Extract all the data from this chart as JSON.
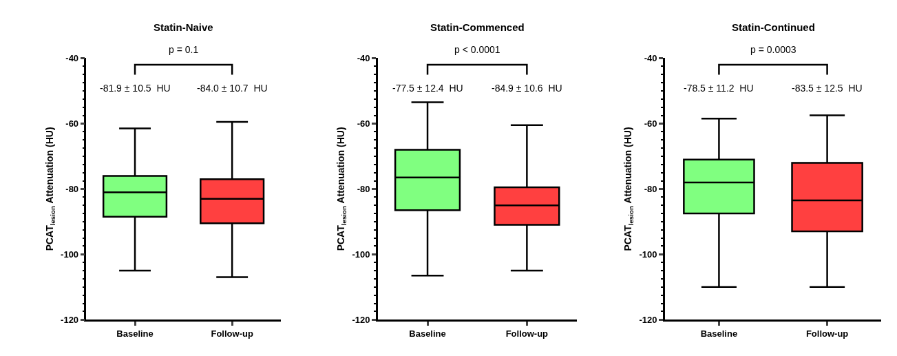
{
  "chart_data": [
    {
      "type": "box",
      "title": "Statin-Naive",
      "ylabel": "PCAT$_{lesion}$ Attenuation (HU)",
      "categories": [
        "Baseline",
        "Follow-up"
      ],
      "colors": [
        "#80ff80",
        "#ff4040"
      ],
      "boxes": [
        {
          "low": -105,
          "q1": -88.5,
          "median": -81,
          "q3": -76,
          "high": -61.5
        },
        {
          "low": -107,
          "q1": -90.5,
          "median": -83,
          "q3": -77,
          "high": -59.5
        }
      ],
      "ylim": [
        -120,
        -40
      ],
      "yticks": [
        -120,
        -100,
        -80,
        -60,
        -40
      ],
      "legend": false,
      "annotations": [
        "p = 0.1",
        "-81.9 ± 10.5  HU",
        "-84.0 ± 10.7  HU"
      ]
    },
    {
      "type": "box",
      "title": "Statin-Commenced",
      "ylabel": "PCAT$_{lesion}$ Attenuation (HU)",
      "categories": [
        "Baseline",
        "Follow-up"
      ],
      "colors": [
        "#80ff80",
        "#ff4040"
      ],
      "boxes": [
        {
          "low": -106.5,
          "q1": -86.5,
          "median": -76.5,
          "q3": -68,
          "high": -53.5
        },
        {
          "low": -105,
          "q1": -91,
          "median": -85,
          "q3": -79.5,
          "high": -60.5
        }
      ],
      "ylim": [
        -120,
        -40
      ],
      "yticks": [
        -120,
        -100,
        -80,
        -60,
        -40
      ],
      "legend": false,
      "annotations": [
        "p < 0.0001",
        "-77.5 ± 12.4  HU",
        "-84.9 ± 10.6  HU"
      ]
    },
    {
      "type": "box",
      "title": "Statin-Continued",
      "ylabel": "PCAT$_{lesion}$ Attenuation (HU)",
      "categories": [
        "Baseline",
        "Follow-up"
      ],
      "colors": [
        "#80ff80",
        "#ff4040"
      ],
      "boxes": [
        {
          "low": -110,
          "q1": -87.5,
          "median": -78,
          "q3": -71,
          "high": -58.5
        },
        {
          "low": -110,
          "q1": -93,
          "median": -83.5,
          "q3": -72,
          "high": -57.5
        }
      ],
      "ylim": [
        -120,
        -40
      ],
      "yticks": [
        -120,
        -100,
        -80,
        -60,
        -40
      ],
      "legend": false,
      "annotations": [
        "p = 0.0003",
        "-78.5 ± 11.2  HU",
        "-83.5 ± 12.5  HU"
      ]
    }
  ]
}
